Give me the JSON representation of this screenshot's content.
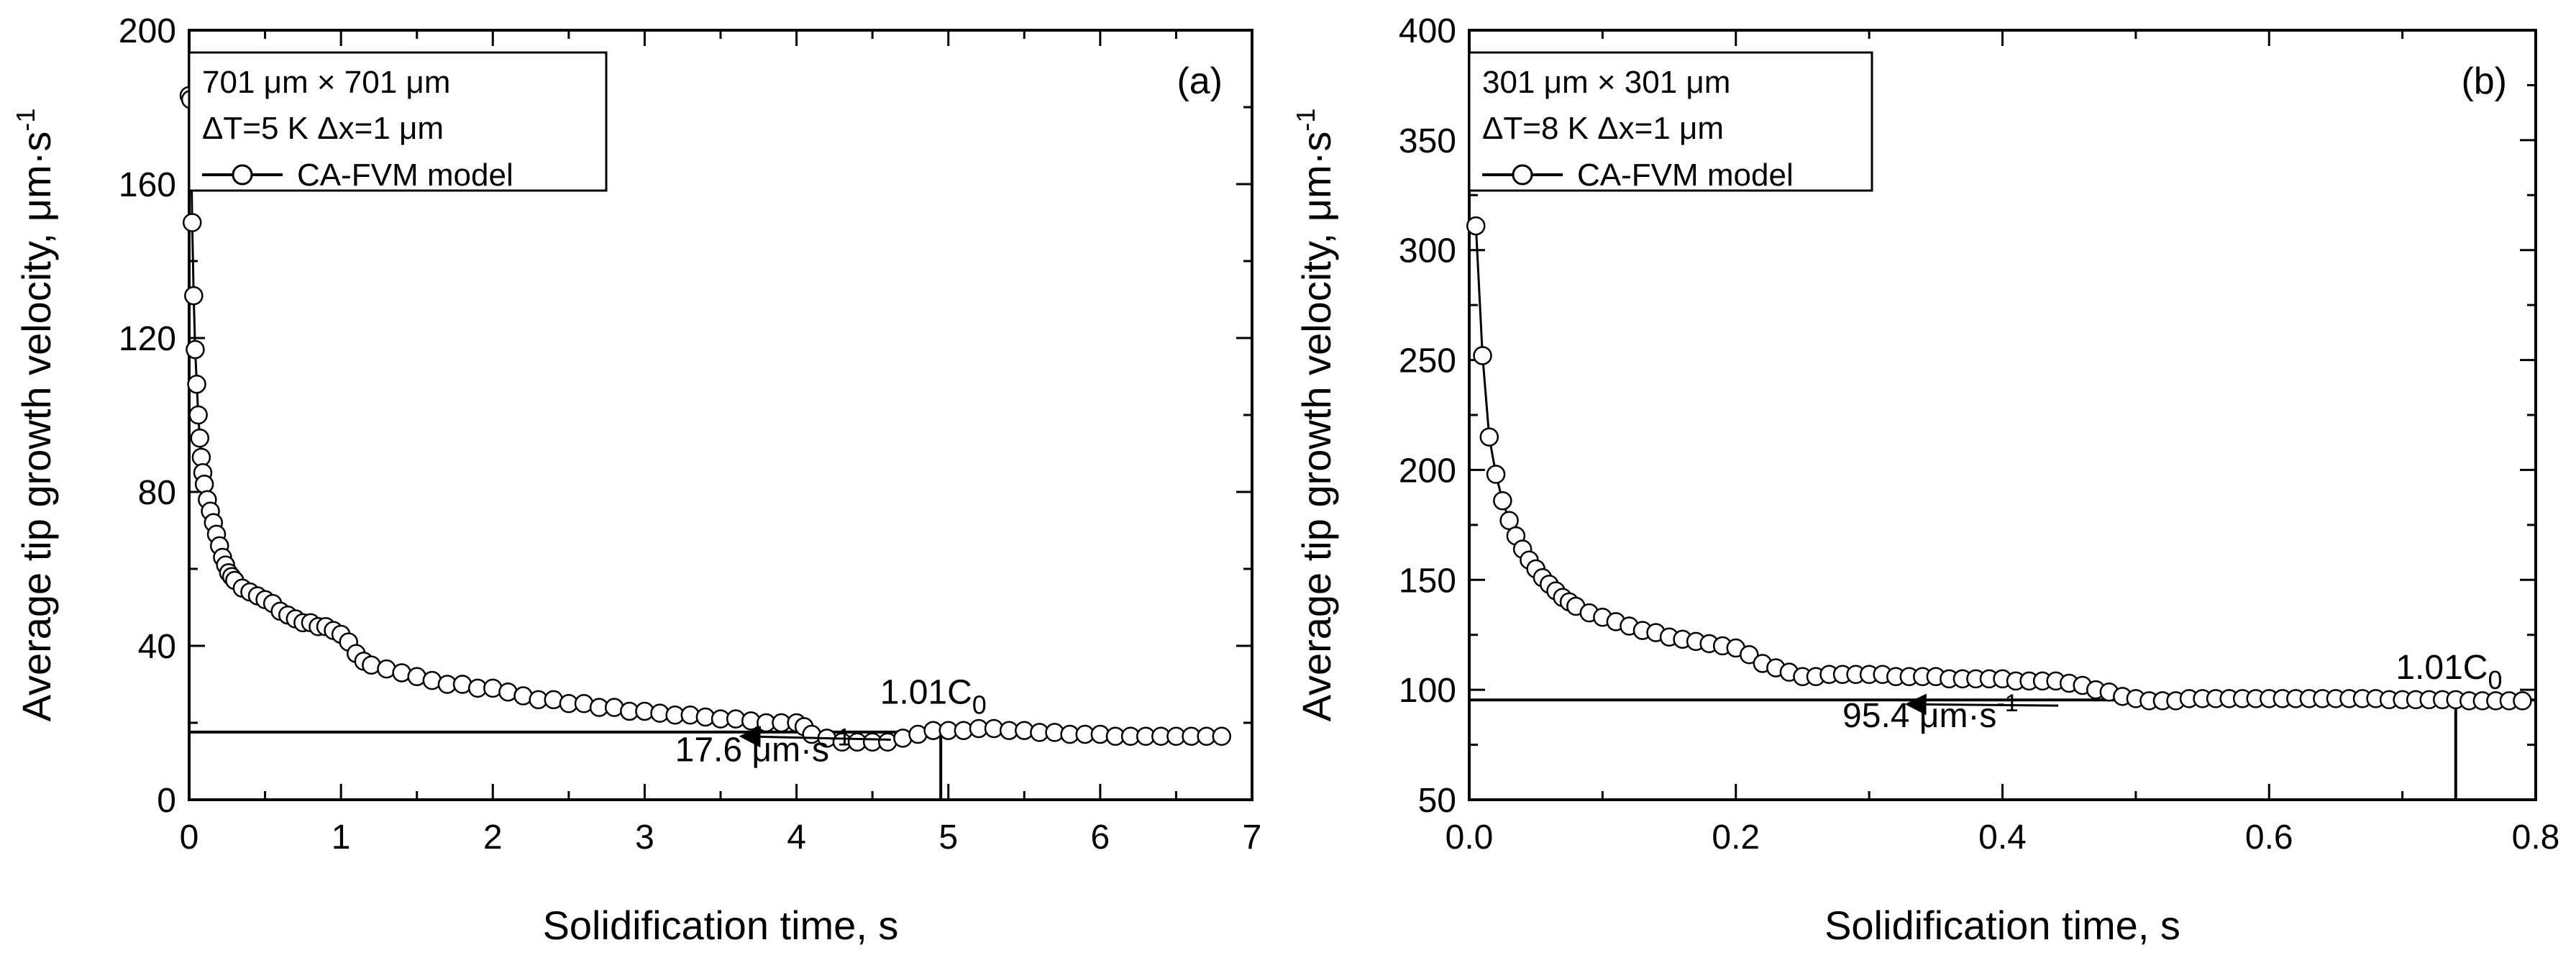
{
  "chart_data": [
    {
      "type": "line",
      "panel_label": "(a)",
      "xlabel": "Solidification time, s",
      "ylabel": "Average tip growth velocity, μm·s",
      "ylabel_sup": "-1",
      "xlim": [
        0,
        7
      ],
      "ylim": [
        0,
        200
      ],
      "xticks": [
        0,
        1,
        2,
        3,
        4,
        5,
        6,
        7
      ],
      "xtick_labels": [
        "0",
        "1",
        "2",
        "3",
        "4",
        "5",
        "6",
        "7"
      ],
      "yticks": [
        0,
        40,
        80,
        120,
        160,
        200
      ],
      "ytick_labels": [
        "0",
        "40",
        "80",
        "120",
        "160",
        "200"
      ],
      "legend": {
        "placement": "top-left",
        "lines": [
          "701 μm × 701 μm",
          "ΔT=5 K  Δx=1 μm"
        ],
        "series_label": "CA-FVM model"
      },
      "series": [
        {
          "name": "CA-FVM model",
          "marker": "open-circle",
          "x": [
            0.0,
            0.01,
            0.02,
            0.03,
            0.04,
            0.05,
            0.06,
            0.07,
            0.08,
            0.09,
            0.1,
            0.12,
            0.14,
            0.16,
            0.18,
            0.2,
            0.22,
            0.24,
            0.26,
            0.28,
            0.3,
            0.35,
            0.4,
            0.45,
            0.5,
            0.55,
            0.6,
            0.65,
            0.7,
            0.75,
            0.8,
            0.85,
            0.9,
            0.95,
            1.0,
            1.05,
            1.1,
            1.15,
            1.2,
            1.3,
            1.4,
            1.5,
            1.6,
            1.7,
            1.8,
            1.9,
            2.0,
            2.1,
            2.2,
            2.3,
            2.4,
            2.5,
            2.6,
            2.7,
            2.8,
            2.9,
            3.0,
            3.1,
            3.2,
            3.3,
            3.4,
            3.5,
            3.6,
            3.7,
            3.8,
            3.9,
            4.0,
            4.05,
            4.1,
            4.2,
            4.3,
            4.4,
            4.5,
            4.6,
            4.7,
            4.8,
            4.9,
            5.0,
            5.1,
            5.2,
            5.3,
            5.4,
            5.5,
            5.6,
            5.7,
            5.8,
            5.9,
            6.0,
            6.1,
            6.2,
            6.3,
            6.4,
            6.5,
            6.6,
            6.7,
            6.8
          ],
          "y": [
            183,
            182,
            150,
            131,
            117,
            108,
            100,
            94,
            89,
            85,
            82,
            78,
            75,
            72,
            69,
            66,
            63,
            61,
            59,
            58,
            57,
            55,
            54,
            53,
            52,
            51,
            49,
            48,
            47,
            46,
            46,
            45,
            45,
            44,
            43,
            41,
            38,
            36,
            35,
            34,
            33,
            32,
            31,
            30,
            30,
            29,
            29,
            28,
            27,
            26,
            26,
            25,
            25,
            24,
            24,
            23,
            23,
            22.5,
            22,
            22,
            21.5,
            21,
            21,
            20.5,
            20,
            20,
            20,
            19,
            17,
            16,
            15,
            15,
            15,
            15,
            16,
            17,
            18,
            18,
            18,
            18.5,
            18.5,
            18,
            18,
            17.5,
            17.5,
            17,
            17,
            17,
            16.5,
            16.5,
            16.5,
            16.5,
            16.5,
            16.5,
            16.5,
            16.5
          ]
        }
      ],
      "reference_line": {
        "y": 17.6,
        "x_start": 0,
        "x_end": 5.0
      },
      "vertical_marker": {
        "x": 4.95,
        "y_from": 0,
        "y_to": 17.6
      },
      "annotations": [
        {
          "text": "17.6 μm·s",
          "sup": "-1",
          "at": {
            "x": 3.2,
            "y": 10
          },
          "arrow_to": {
            "x": 3.65,
            "y": 17.6
          }
        },
        {
          "text": "1.01C",
          "sub": "0",
          "at": {
            "x": 4.55,
            "y": 25
          }
        }
      ]
    },
    {
      "type": "line",
      "panel_label": "(b)",
      "xlabel": "Solidification time, s",
      "ylabel": "Average tip growth velocity, μm·s",
      "ylabel_sup": "-1",
      "xlim": [
        0,
        0.8
      ],
      "ylim": [
        50,
        400
      ],
      "xticks": [
        0.0,
        0.2,
        0.4,
        0.6,
        0.8
      ],
      "xtick_labels": [
        "0.0",
        "0.2",
        "0.4",
        "0.6",
        "0.8"
      ],
      "yticks": [
        50,
        100,
        150,
        200,
        250,
        300,
        350,
        400
      ],
      "ytick_labels": [
        "50",
        "100",
        "150",
        "200",
        "250",
        "300",
        "350",
        "400"
      ],
      "legend": {
        "placement": "top-left",
        "lines": [
          "301 μm × 301 μm",
          "ΔT=8 K  Δx=1 μm"
        ],
        "series_label": "CA-FVM model"
      },
      "series": [
        {
          "name": "CA-FVM model",
          "marker": "open-circle",
          "x": [
            0.005,
            0.01,
            0.015,
            0.02,
            0.025,
            0.03,
            0.035,
            0.04,
            0.045,
            0.05,
            0.055,
            0.06,
            0.065,
            0.07,
            0.075,
            0.08,
            0.09,
            0.1,
            0.11,
            0.12,
            0.13,
            0.14,
            0.15,
            0.16,
            0.17,
            0.18,
            0.19,
            0.2,
            0.21,
            0.22,
            0.23,
            0.24,
            0.25,
            0.26,
            0.27,
            0.28,
            0.29,
            0.3,
            0.31,
            0.32,
            0.33,
            0.34,
            0.35,
            0.36,
            0.37,
            0.38,
            0.39,
            0.4,
            0.41,
            0.42,
            0.43,
            0.44,
            0.45,
            0.46,
            0.47,
            0.48,
            0.49,
            0.5,
            0.51,
            0.52,
            0.53,
            0.54,
            0.55,
            0.56,
            0.57,
            0.58,
            0.59,
            0.6,
            0.61,
            0.62,
            0.63,
            0.64,
            0.65,
            0.66,
            0.67,
            0.68,
            0.69,
            0.7,
            0.71,
            0.72,
            0.73,
            0.74,
            0.75,
            0.76,
            0.77,
            0.78,
            0.79
          ],
          "y": [
            311,
            252,
            215,
            198,
            186,
            177,
            170,
            164,
            159,
            155,
            151,
            148,
            145,
            142,
            140,
            138,
            135,
            133,
            131,
            129,
            127,
            126,
            124,
            123,
            122,
            121,
            120,
            119,
            116,
            112,
            110,
            108,
            106,
            106,
            107,
            107,
            107,
            107,
            107,
            106,
            106,
            106,
            106,
            105,
            105,
            105,
            105,
            105,
            104,
            104,
            104,
            104,
            103,
            102,
            100,
            99,
            97,
            96,
            95,
            95,
            95,
            96,
            96,
            96,
            96,
            96,
            96,
            96,
            96,
            96,
            96,
            96,
            96,
            96,
            96,
            96,
            95.5,
            95.5,
            95.5,
            95.5,
            95.5,
            95.5,
            95,
            95,
            95,
            95,
            95
          ]
        }
      ],
      "reference_line": {
        "y": 95.4,
        "x_start": 0,
        "x_end": 0.8
      },
      "vertical_marker": {
        "x": 0.74,
        "y_from": 50,
        "y_to": 95.4
      },
      "annotations": [
        {
          "text": "95.4 μm·s",
          "sup": "-1",
          "at": {
            "x": 0.28,
            "y": 83
          },
          "arrow_to": {
            "x": 0.33,
            "y": 95.4
          }
        },
        {
          "text": "1.01C",
          "sub": "0",
          "at": {
            "x": 0.695,
            "y": 105
          }
        }
      ]
    }
  ]
}
